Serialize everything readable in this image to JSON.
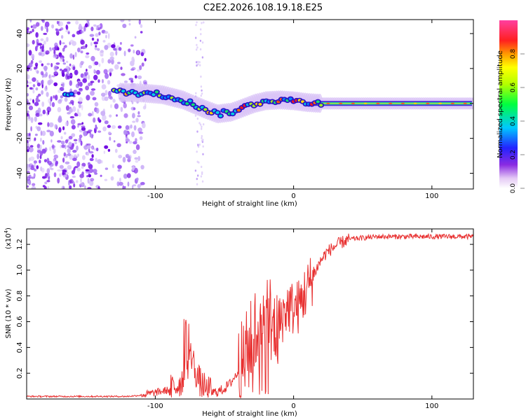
{
  "title": "C2E2.2026.108.19.18.E25",
  "chart_data": [
    {
      "type": "heatmap",
      "xlabel": "Height of straight line (km)",
      "ylabel": "Frequency (Hz)",
      "xlim": [
        -193,
        130
      ],
      "ylim": [
        -49,
        48
      ],
      "xticks": [
        -100,
        0,
        100
      ],
      "xtick_labels": [
        "-100",
        "0",
        "100"
      ],
      "yticks": [
        -40,
        -20,
        0,
        20,
        40
      ],
      "ytick_labels": [
        "-40",
        "-20",
        "0",
        "20",
        "40"
      ],
      "noise_region": [
        -193,
        -115
      ],
      "ridge": {
        "x": [
          -165,
          -130,
          -110,
          -95,
          -80,
          -65,
          -55,
          -45,
          -38,
          -28,
          -20,
          -10,
          0,
          10,
          20,
          130
        ],
        "y": [
          5,
          6.5,
          6,
          5,
          2,
          -3,
          -6,
          -5,
          -3,
          0,
          1.5,
          2,
          1.5,
          0.5,
          0,
          0
        ]
      },
      "colorbar": {
        "label": "Normalized spectral amplitude",
        "range": [
          0,
          1
        ],
        "ticks": [
          0.0,
          0.2,
          0.4,
          0.6,
          0.8
        ],
        "tick_labels": [
          "0.0",
          "0.2",
          "0.4",
          "0.6",
          "0.8"
        ]
      }
    },
    {
      "type": "line",
      "xlabel": "Height of straight line (km)",
      "ylabel": "SNR (10 * v/v)",
      "yscale_label": "(x10",
      "yscale_exp": "4",
      "yscale_close": ")",
      "xlim": [
        -193,
        130
      ],
      "ylim": [
        0,
        1.32
      ],
      "xticks": [
        -100,
        0,
        100
      ],
      "xtick_labels": [
        "-100",
        "0",
        "100"
      ],
      "yticks": [
        0.2,
        0.4,
        0.6,
        0.8,
        1.0,
        1.2
      ],
      "ytick_labels": [
        "0.2",
        "0.4",
        "0.6",
        "0.8",
        "1.0",
        "1.2"
      ],
      "series": [
        {
          "name": "SNR",
          "color": "#e83030",
          "x": [
            -193,
            -150,
            -120,
            -110,
            -100,
            -90,
            -85,
            -80,
            -77,
            -74,
            -70,
            -66,
            -62,
            -58,
            -54,
            -50,
            -46,
            -42,
            -38,
            -34,
            -30,
            -26,
            -22,
            -18,
            -15,
            -12,
            -8,
            -4,
            0,
            4,
            8,
            12,
            16,
            20,
            24,
            28,
            32,
            36,
            40,
            50,
            60,
            80,
            100,
            130
          ],
          "values": [
            0.02,
            0.02,
            0.02,
            0.03,
            0.05,
            0.07,
            0.1,
            0.15,
            0.25,
            0.35,
            0.18,
            0.1,
            0.06,
            0.05,
            0.06,
            0.08,
            0.12,
            0.18,
            0.25,
            0.35,
            0.45,
            0.55,
            0.5,
            0.6,
            0.58,
            0.52,
            0.65,
            0.72,
            0.7,
            0.72,
            0.82,
            0.9,
            1.0,
            1.08,
            1.14,
            1.17,
            1.2,
            1.22,
            1.24,
            1.25,
            1.26,
            1.26,
            1.26,
            1.26
          ]
        }
      ]
    }
  ]
}
